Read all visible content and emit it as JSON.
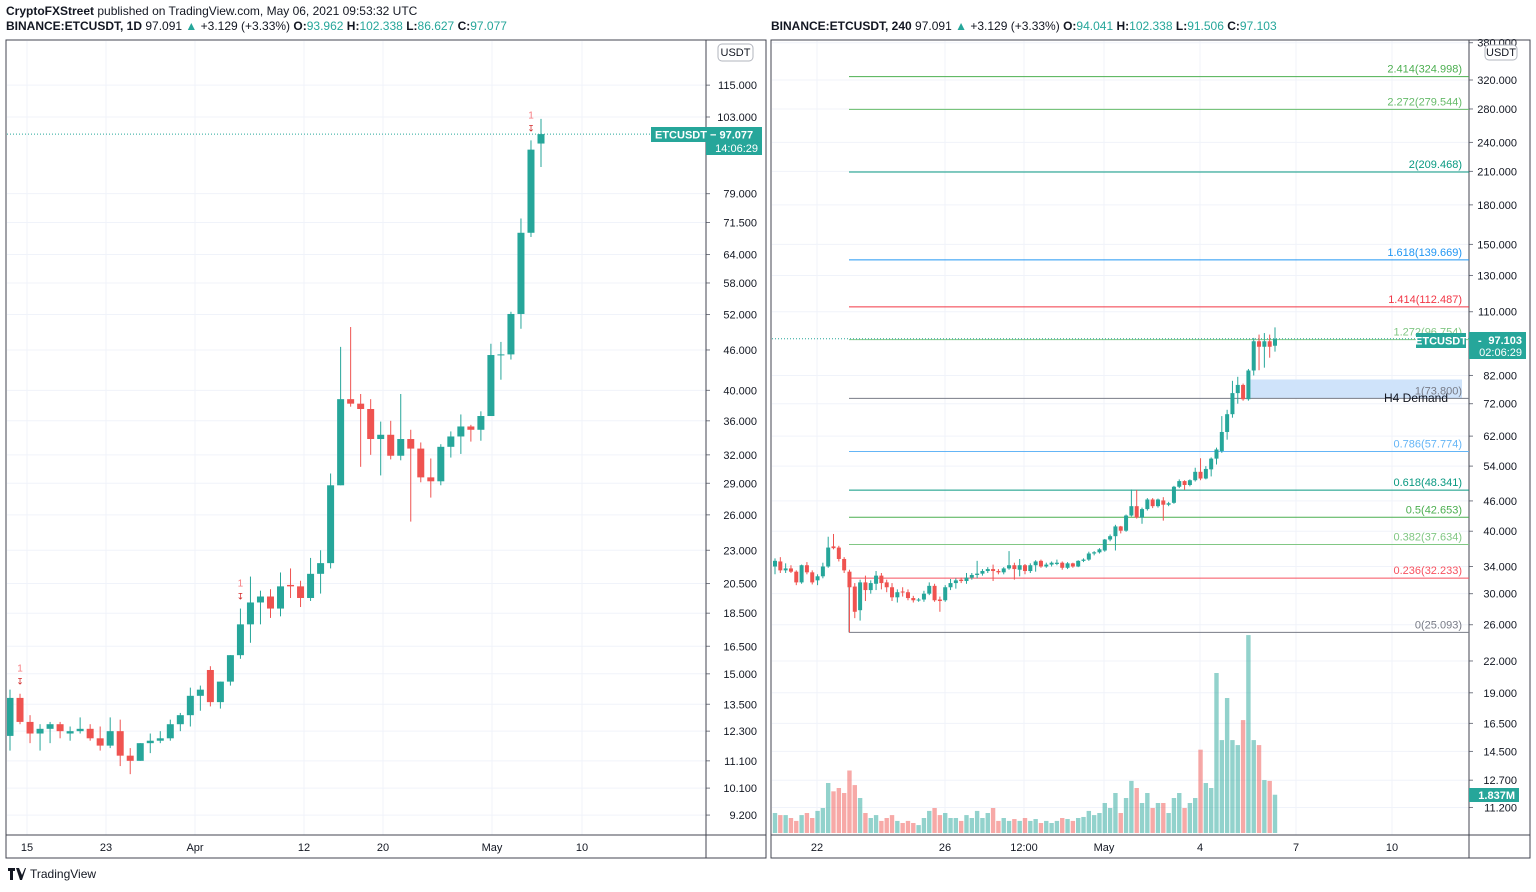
{
  "header": {
    "author": "CryptoFXStreet",
    "published": "published on TradingView.com, May 06, 2021 09:53:32 UTC"
  },
  "left_chart": {
    "symbol": "BINANCE:ETCUSDT, 1D",
    "last": "97.091",
    "change": "+3.129 (+3.33%)",
    "o_label": "O:",
    "o": "93.962",
    "h_label": "H:",
    "h": "102.338",
    "l_label": "L:",
    "l": "86.627",
    "c_label": "C:",
    "c": "97.077",
    "currency": "USDT",
    "price_badge": "ETCUSDT − 97.077",
    "countdown": "14:06:29",
    "y_ticks": [
      "115.000",
      "103.000",
      "79.000",
      "71.500",
      "64.000",
      "58.000",
      "52.000",
      "46.000",
      "40.000",
      "36.000",
      "32.000",
      "29.000",
      "26.000",
      "23.000",
      "20.500",
      "18.500",
      "16.500",
      "15.000",
      "13.500",
      "12.300",
      "11.100",
      "10.100",
      "9.200"
    ],
    "x_ticks": [
      "15",
      "23",
      "Apr",
      "12",
      "20",
      "May",
      "10"
    ],
    "marker_label": "1"
  },
  "right_chart": {
    "symbol": "BINANCE:ETCUSDT, 240",
    "last": "97.091",
    "change": "+3.129 (+3.33%)",
    "o_label": "O:",
    "o": "94.041",
    "h_label": "H:",
    "h": "102.338",
    "l_label": "L:",
    "l": "91.506",
    "c_label": "C:",
    "c": "97.103",
    "currency": "USDT",
    "price_badge_symbol": "ETCUSDT",
    "price_badge_value": "97.103",
    "countdown": "02:06:29",
    "volume_badge": "1.837M",
    "demand_zone_label": "H4 Demand",
    "y_ticks": [
      "380.000",
      "320.000",
      "280.000",
      "240.000",
      "210.000",
      "180.000",
      "150.000",
      "130.000",
      "110.000",
      "82.000",
      "72.000",
      "62.000",
      "54.000",
      "46.000",
      "40.000",
      "34.000",
      "30.000",
      "26.000",
      "22.000",
      "19.000",
      "16.500",
      "14.500",
      "12.700",
      "11.200"
    ],
    "x_ticks": [
      "22",
      "26",
      "12:00",
      "May",
      "4",
      "7",
      "10"
    ],
    "fib_levels": [
      {
        "label": "2.414(324.998)",
        "price": 324.998,
        "color": "#4caf50"
      },
      {
        "label": "2.272(279.544)",
        "price": 279.544,
        "color": "#66bb6a"
      },
      {
        "label": "2(209.468)",
        "price": 209.468,
        "color": "#089981"
      },
      {
        "label": "1.618(139.669)",
        "price": 139.669,
        "color": "#2196f3"
      },
      {
        "label": "1.414(112.487)",
        "price": 112.487,
        "color": "#f23645"
      },
      {
        "label": "1.272(96.754)",
        "price": 96.754,
        "color": "#81c784"
      },
      {
        "label": "1(73.800)",
        "price": 73.8,
        "color": "#787b86"
      },
      {
        "label": "0.786(57.774)",
        "price": 57.774,
        "color": "#64b5f6"
      },
      {
        "label": "0.618(48.341)",
        "price": 48.341,
        "color": "#089981"
      },
      {
        "label": "0.5(42.653)",
        "price": 42.653,
        "color": "#4caf50"
      },
      {
        "label": "0.382(37.634)",
        "price": 37.634,
        "color": "#81c784"
      },
      {
        "label": "0.236(32.233)",
        "price": 32.233,
        "color": "#f7525f"
      },
      {
        "label": "0(25.093)",
        "price": 25.093,
        "color": "#787b86"
      }
    ]
  },
  "colors": {
    "up": "#26a69a",
    "down": "#ef5350",
    "grid": "#f0f3fa",
    "demand": "#cfe3fa"
  },
  "footer": {
    "brand": "TradingView"
  },
  "chart_data": [
    {
      "type": "candlestick",
      "title": "BINANCE:ETCUSDT, 1D",
      "scale": "log",
      "ylim": [
        8.5,
        125
      ],
      "x_range": [
        "Mar 13",
        "May 6"
      ],
      "grid": true,
      "ohlc": [
        [
          12.1,
          14.2,
          11.5,
          13.8
        ],
        [
          13.8,
          14.0,
          12.6,
          12.7
        ],
        [
          12.7,
          13.0,
          11.8,
          12.2
        ],
        [
          12.2,
          12.6,
          11.5,
          12.4
        ],
        [
          12.4,
          12.7,
          11.8,
          12.6
        ],
        [
          12.6,
          12.7,
          12.0,
          12.3
        ],
        [
          12.2,
          12.5,
          11.9,
          12.3
        ],
        [
          12.3,
          12.9,
          12.2,
          12.4
        ],
        [
          12.4,
          12.6,
          11.9,
          12.0
        ],
        [
          12.0,
          12.5,
          11.5,
          11.7
        ],
        [
          11.7,
          12.9,
          11.6,
          12.3
        ],
        [
          12.3,
          12.8,
          10.9,
          11.3
        ],
        [
          11.3,
          11.6,
          10.6,
          11.1
        ],
        [
          11.1,
          11.8,
          11.1,
          11.8
        ],
        [
          11.8,
          12.2,
          11.4,
          11.9
        ],
        [
          11.9,
          12.3,
          11.8,
          12.0
        ],
        [
          12.0,
          12.8,
          11.9,
          12.6
        ],
        [
          12.6,
          13.1,
          12.3,
          13.0
        ],
        [
          13.0,
          14.3,
          12.5,
          13.9
        ],
        [
          13.9,
          14.4,
          13.2,
          14.2
        ],
        [
          15.2,
          15.4,
          13.4,
          13.6
        ],
        [
          13.6,
          14.6,
          13.3,
          14.6
        ],
        [
          14.6,
          16.0,
          14.4,
          16.0
        ],
        [
          16.0,
          18.8,
          15.8,
          17.8
        ],
        [
          17.8,
          21.0,
          16.7,
          19.2
        ],
        [
          19.2,
          20.0,
          17.8,
          19.6
        ],
        [
          19.6,
          20.1,
          18.2,
          18.8
        ],
        [
          18.8,
          21.3,
          18.3,
          20.3
        ],
        [
          20.4,
          21.6,
          19.5,
          20.3
        ],
        [
          20.3,
          20.7,
          18.9,
          19.5
        ],
        [
          19.5,
          22.4,
          19.3,
          21.2
        ],
        [
          21.2,
          23.0,
          19.8,
          22.0
        ],
        [
          22.0,
          30.0,
          21.6,
          28.8
        ],
        [
          28.8,
          46.5,
          28.8,
          38.8
        ],
        [
          38.8,
          49.8,
          37.8,
          38.2
        ],
        [
          38.2,
          39.5,
          30.7,
          37.5
        ],
        [
          37.5,
          38.8,
          32.0,
          33.8
        ],
        [
          33.8,
          35.9,
          29.8,
          34.3
        ],
        [
          34.3,
          36.0,
          31.5,
          31.9
        ],
        [
          31.9,
          39.5,
          31.4,
          33.8
        ],
        [
          33.8,
          34.9,
          25.4,
          32.7
        ],
        [
          32.7,
          33.4,
          29.1,
          29.6
        ],
        [
          29.6,
          31.6,
          27.6,
          29.2
        ],
        [
          29.2,
          33.2,
          28.8,
          32.9
        ],
        [
          32.9,
          34.7,
          31.7,
          34.1
        ],
        [
          34.1,
          36.8,
          32.1,
          35.3
        ],
        [
          35.3,
          35.5,
          33.5,
          34.9
        ],
        [
          34.9,
          37.2,
          33.6,
          36.6
        ],
        [
          36.6,
          47.0,
          36.6,
          45.2
        ],
        [
          45.2,
          47.3,
          41.5,
          45.3
        ],
        [
          45.3,
          52.5,
          44.5,
          52.1
        ],
        [
          52.1,
          72.5,
          49.5,
          69.0
        ],
        [
          69.0,
          95.0,
          68.0,
          92.0
        ],
        [
          93.962,
          102.338,
          86.627,
          97.077
        ]
      ],
      "markers": [
        1,
        23,
        52
      ]
    },
    {
      "type": "candlestick",
      "title": "BINANCE:ETCUSDT, 240",
      "scale": "log",
      "ylim": [
        10.5,
        385
      ],
      "x_range": [
        "Apr 20",
        "May 6"
      ],
      "grid": true,
      "volume_unit": "M",
      "ohlc": [
        [
          34.0,
          35.3,
          32.8,
          34.9
        ],
        [
          34.8,
          35.5,
          33.0,
          33.4
        ],
        [
          33.4,
          34.5,
          33.0,
          33.7
        ],
        [
          33.7,
          34.2,
          33.0,
          33.2
        ],
        [
          33.2,
          33.4,
          31.2,
          31.6
        ],
        [
          31.6,
          34.3,
          31.4,
          34.2
        ],
        [
          34.2,
          34.7,
          32.8,
          33.1
        ],
        [
          33.1,
          33.4,
          31.3,
          31.6
        ],
        [
          31.9,
          32.8,
          31.2,
          32.5
        ],
        [
          32.5,
          34.6,
          32.2,
          34.0
        ],
        [
          34.0,
          39.0,
          33.8,
          37.1
        ],
        [
          37.3,
          39.5,
          36.8,
          37.0
        ],
        [
          37.1,
          37.4,
          34.8,
          35.2
        ],
        [
          35.2,
          35.5,
          33.0,
          33.4
        ],
        [
          33.2,
          33.5,
          25.1,
          30.9
        ],
        [
          31.0,
          31.5,
          26.8,
          27.6
        ],
        [
          27.8,
          32.0,
          26.5,
          31.6
        ],
        [
          31.6,
          32.6,
          29.0,
          30.5
        ],
        [
          30.5,
          31.9,
          30.0,
          31.5
        ],
        [
          31.4,
          33.3,
          30.5,
          32.6
        ],
        [
          32.6,
          33.0,
          30.6,
          31.5
        ],
        [
          31.6,
          32.0,
          30.2,
          30.9
        ],
        [
          30.9,
          31.5,
          29.0,
          29.5
        ],
        [
          29.5,
          30.6,
          28.8,
          30.2
        ],
        [
          30.3,
          30.9,
          29.6,
          30.2
        ],
        [
          30.2,
          30.6,
          29.1,
          29.4
        ],
        [
          29.4,
          29.7,
          28.8,
          29.1
        ],
        [
          29.1,
          29.4,
          28.9,
          29.2
        ],
        [
          29.2,
          30.4,
          28.9,
          30.0
        ],
        [
          30.0,
          31.6,
          29.8,
          31.1
        ],
        [
          31.1,
          31.4,
          28.9,
          29.1
        ],
        [
          29.2,
          29.6,
          27.6,
          29.0
        ],
        [
          29.1,
          31.2,
          28.9,
          30.9
        ],
        [
          30.9,
          32.1,
          30.5,
          31.5
        ],
        [
          31.5,
          32.2,
          30.7,
          31.9
        ],
        [
          32.0,
          32.3,
          31.5,
          31.8
        ],
        [
          31.8,
          33.0,
          31.4,
          32.3
        ],
        [
          32.3,
          33.0,
          32.0,
          32.7
        ],
        [
          32.7,
          34.9,
          32.2,
          32.9
        ],
        [
          32.9,
          33.6,
          32.6,
          33.3
        ],
        [
          33.3,
          33.9,
          33.0,
          33.6
        ],
        [
          33.6,
          34.3,
          31.8,
          33.3
        ],
        [
          33.3,
          33.6,
          32.8,
          33.1
        ],
        [
          33.1,
          33.9,
          32.8,
          33.7
        ],
        [
          33.7,
          36.5,
          33.5,
          34.2
        ],
        [
          34.2,
          34.6,
          32.0,
          33.6
        ],
        [
          33.5,
          35.2,
          32.5,
          34.2
        ],
        [
          34.2,
          34.4,
          32.8,
          33.3
        ],
        [
          33.3,
          34.5,
          33.0,
          34.2
        ],
        [
          34.2,
          35.0,
          33.2,
          34.8
        ],
        [
          34.9,
          35.1,
          33.8,
          34.0
        ],
        [
          34.0,
          34.6,
          33.8,
          34.3
        ],
        [
          34.3,
          34.8,
          34.0,
          34.6
        ],
        [
          34.4,
          35.1,
          34.2,
          34.6
        ],
        [
          34.6,
          34.8,
          33.5,
          33.8
        ],
        [
          33.8,
          34.7,
          33.6,
          34.5
        ],
        [
          34.5,
          34.6,
          33.8,
          34.0
        ],
        [
          34.0,
          35.0,
          33.9,
          34.9
        ],
        [
          34.9,
          35.3,
          34.7,
          35.1
        ],
        [
          35.1,
          36.4,
          34.9,
          36.1
        ],
        [
          36.1,
          36.5,
          35.8,
          36.3
        ],
        [
          36.3,
          37.0,
          36.1,
          36.8
        ],
        [
          36.6,
          38.6,
          36.4,
          38.5
        ],
        [
          38.5,
          39.4,
          38.2,
          39.1
        ],
        [
          39.1,
          41.2,
          36.6,
          40.9
        ],
        [
          40.9,
          41.0,
          39.6,
          40.1
        ],
        [
          40.1,
          43.2,
          39.9,
          43.0
        ],
        [
          43.0,
          48.5,
          42.8,
          44.9
        ],
        [
          44.9,
          48.4,
          42.4,
          42.6
        ],
        [
          42.6,
          44.6,
          41.4,
          44.3
        ],
        [
          44.3,
          46.6,
          44.0,
          46.3
        ],
        [
          46.3,
          46.6,
          44.5,
          44.9
        ],
        [
          44.9,
          46.5,
          44.6,
          46.3
        ],
        [
          46.1,
          46.8,
          42.0,
          45.2
        ],
        [
          45.2,
          45.8,
          44.9,
          45.5
        ],
        [
          45.6,
          49.3,
          45.4,
          49.1
        ],
        [
          49.1,
          50.8,
          48.8,
          50.4
        ],
        [
          50.4,
          50.6,
          48.4,
          49.5
        ],
        [
          49.5,
          50.8,
          49.2,
          50.6
        ],
        [
          50.6,
          53.6,
          50.3,
          52.6
        ],
        [
          52.6,
          56.0,
          50.6,
          51.0
        ],
        [
          51.0,
          54.0,
          50.8,
          53.3
        ],
        [
          53.2,
          56.2,
          51.5,
          55.9
        ],
        [
          55.9,
          58.8,
          54.4,
          58.3
        ],
        [
          57.9,
          68.0,
          57.4,
          63.2
        ],
        [
          63.2,
          70.0,
          61.0,
          68.6
        ],
        [
          68.6,
          80.0,
          67.5,
          75.6
        ],
        [
          75.6,
          81.5,
          72.0,
          78.5
        ],
        [
          78.5,
          79.0,
          73.0,
          73.5
        ],
        [
          73.5,
          84.5,
          73.0,
          83.9
        ],
        [
          83.9,
          97.5,
          82.0,
          96.0
        ],
        [
          96.0,
          99.0,
          84.0,
          93.6
        ],
        [
          93.6,
          99.7,
          85.0,
          96.0
        ],
        [
          96.0,
          99.0,
          89.0,
          93.6
        ],
        [
          94.041,
          102.338,
          91.506,
          97.103
        ]
      ],
      "volume": [
        0.96,
        0.86,
        0.86,
        0.72,
        0.58,
        0.86,
        0.96,
        0.72,
        1.06,
        1.2,
        2.4,
        2.0,
        2.16,
        1.92,
        3.0,
        2.3,
        1.68,
        0.96,
        0.72,
        0.86,
        0.58,
        0.72,
        0.86,
        0.58,
        0.48,
        0.58,
        0.48,
        0.38,
        0.72,
        1.06,
        1.2,
        0.86,
        0.96,
        0.72,
        0.72,
        0.58,
        0.86,
        0.72,
        1.06,
        0.72,
        0.96,
        1.2,
        0.58,
        0.72,
        0.58,
        0.67,
        0.58,
        0.72,
        0.58,
        0.67,
        0.48,
        0.58,
        0.48,
        0.58,
        0.72,
        0.67,
        0.58,
        0.72,
        0.77,
        1.06,
        0.86,
        0.96,
        1.44,
        1.2,
        1.92,
        0.96,
        1.68,
        2.5,
        2.16,
        1.44,
        1.92,
        1.2,
        1.44,
        1.44,
        0.96,
        1.68,
        1.92,
        1.2,
        1.44,
        1.68,
        4.0,
        2.4,
        2.16,
        7.68,
        4.46,
        6.48,
        4.46,
        4.22,
        5.42,
        9.5,
        4.46,
        4.22,
        2.54,
        2.5,
        1.837
      ],
      "demand_zone": {
        "low": 73.8,
        "high": 80.5
      }
    }
  ]
}
